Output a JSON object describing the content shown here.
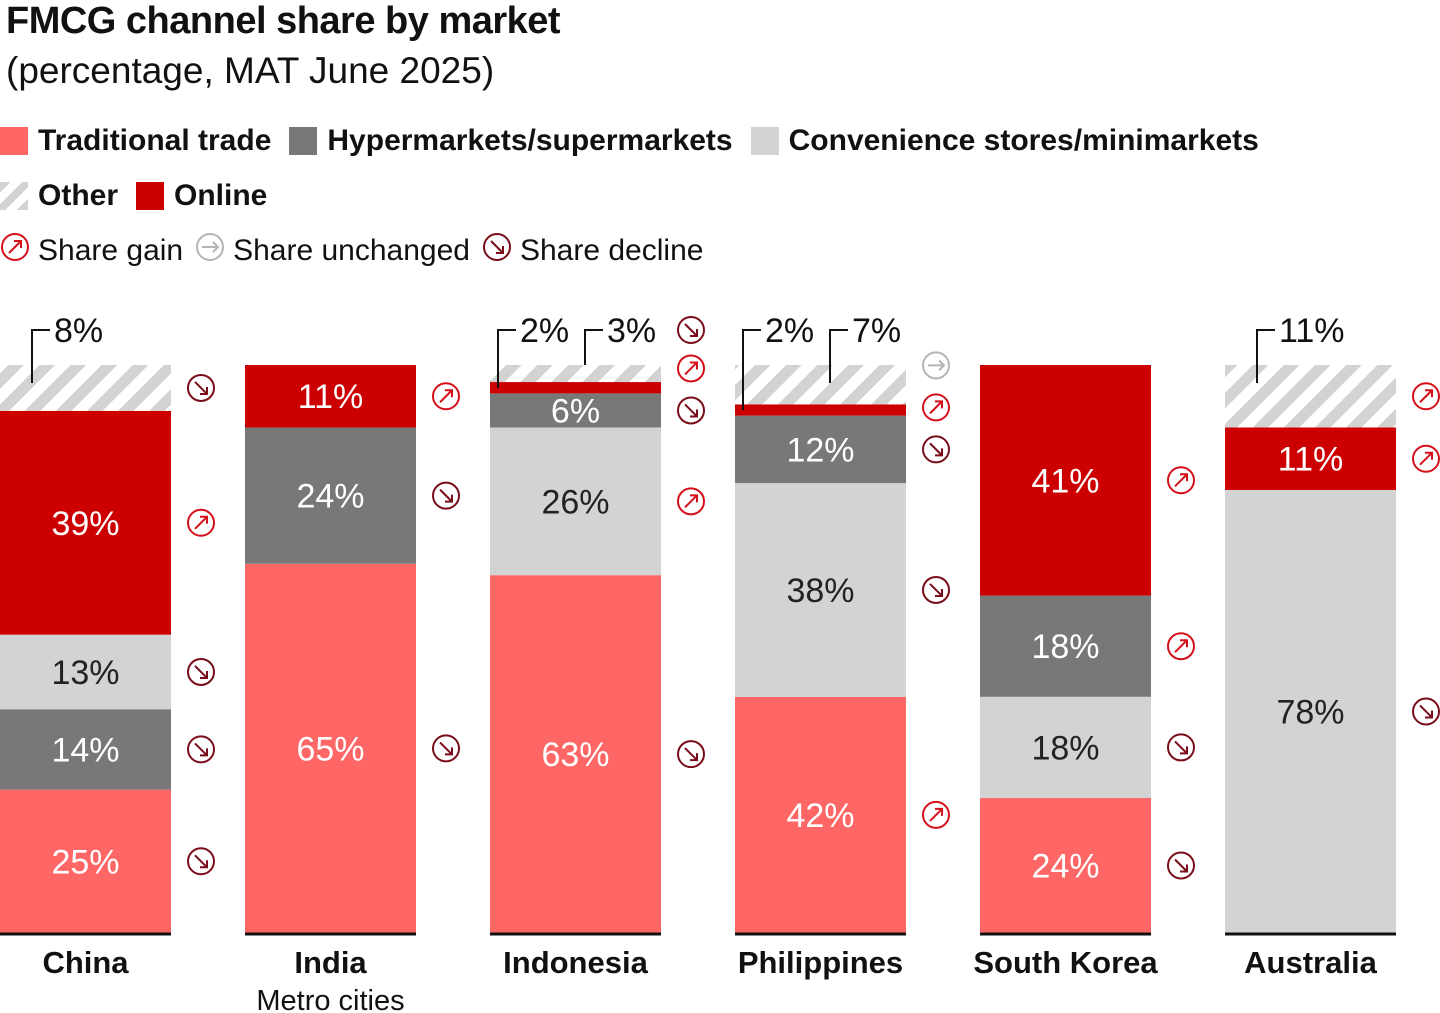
{
  "chart_data": {
    "type": "bar",
    "stacked": true,
    "title": "FMCG channel share by market",
    "subtitle": "(percentage, MAT June 2025)",
    "categories": [
      "China",
      "India",
      "Indonesia",
      "Philippines",
      "South Korea",
      "Australia"
    ],
    "category_sublabels": [
      "",
      "Metro cities",
      "",
      "",
      "",
      ""
    ],
    "series": [
      {
        "name": "Traditional trade",
        "color": "#ff6666",
        "values": [
          25,
          65,
          63,
          42,
          24,
          null
        ],
        "trend": [
          "decline",
          "decline",
          "decline",
          "gain",
          "decline",
          null
        ]
      },
      {
        "name": "Hypermarkets/supermarkets",
        "color": "#787878",
        "values": [
          14,
          24,
          6,
          12,
          18,
          null
        ],
        "trend": [
          "decline",
          "decline",
          "decline",
          "decline",
          "gain",
          null
        ]
      },
      {
        "name": "Convenience stores/minimarkets",
        "color": "#d3d3d3",
        "values": [
          13,
          null,
          26,
          38,
          18,
          78
        ],
        "trend": [
          "decline",
          null,
          "gain",
          "decline",
          "decline",
          "decline"
        ]
      },
      {
        "name": "Online",
        "color": "#cc0000",
        "values": [
          39,
          11,
          2,
          2,
          41,
          11
        ],
        "trend": [
          "gain",
          "gain",
          "gain",
          "gain",
          "gain",
          "gain"
        ]
      },
      {
        "name": "Other",
        "color": "hatched #d3d3d3",
        "values": [
          8,
          null,
          3,
          7,
          null,
          11
        ],
        "trend": [
          "decline",
          null,
          "decline",
          "unchanged",
          null,
          "gain"
        ]
      }
    ],
    "stack_order": "Traditional trade at bottom, Other at top (China: Hypermarkets below Convenience)",
    "trend_legend": {
      "gain": "Share gain",
      "unchanged": "Share unchanged",
      "decline": "Share decline"
    },
    "trend_colors": {
      "gain": "#d4111b",
      "unchanged": "#b5b5b5",
      "decline": "#7a0d1a"
    },
    "legend_placement": "top",
    "grid": false
  }
}
